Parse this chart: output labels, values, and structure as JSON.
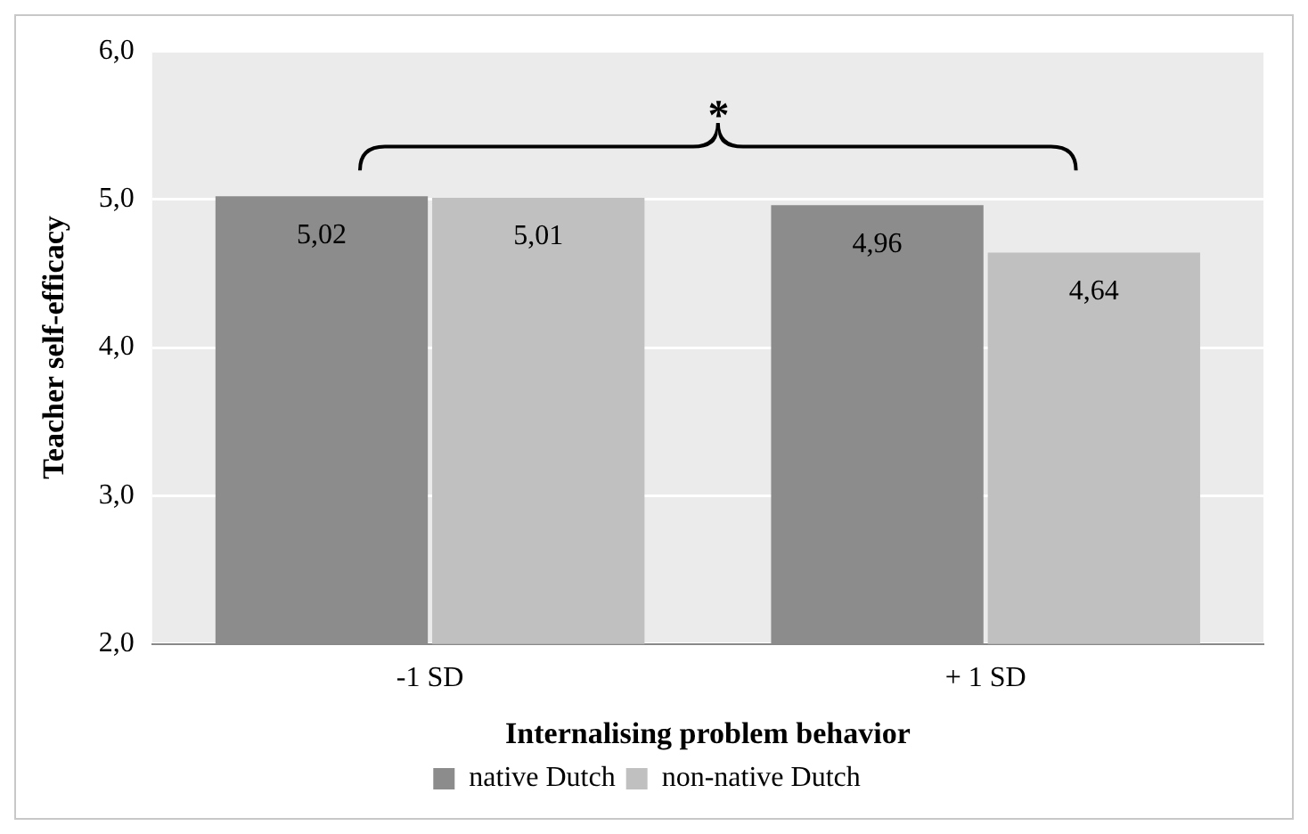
{
  "chart_data": {
    "type": "bar",
    "xlabel": "Internalising problem behavior",
    "ylabel": "Teacher self-efficacy",
    "categories": [
      "-1 SD",
      "+ 1 SD"
    ],
    "series": [
      {
        "name": "native Dutch",
        "color": "#8c8c8c",
        "values": [
          5.02,
          4.96
        ],
        "value_labels": [
          "5,02",
          "4,96"
        ]
      },
      {
        "name": "non-native Dutch",
        "color": "#c0c0c0",
        "values": [
          5.01,
          4.64
        ],
        "value_labels": [
          "5,01",
          "4,64"
        ]
      }
    ],
    "ylim": [
      2,
      6
    ],
    "yticks": [
      {
        "value": 2,
        "label": "2,0"
      },
      {
        "value": 3,
        "label": "3,0"
      },
      {
        "value": 4,
        "label": "4,0"
      },
      {
        "value": 5,
        "label": "5,0"
      },
      {
        "value": 6,
        "label": "6,0"
      }
    ],
    "grid": "y",
    "legend": "bottom",
    "annotations": [
      "*"
    ]
  }
}
